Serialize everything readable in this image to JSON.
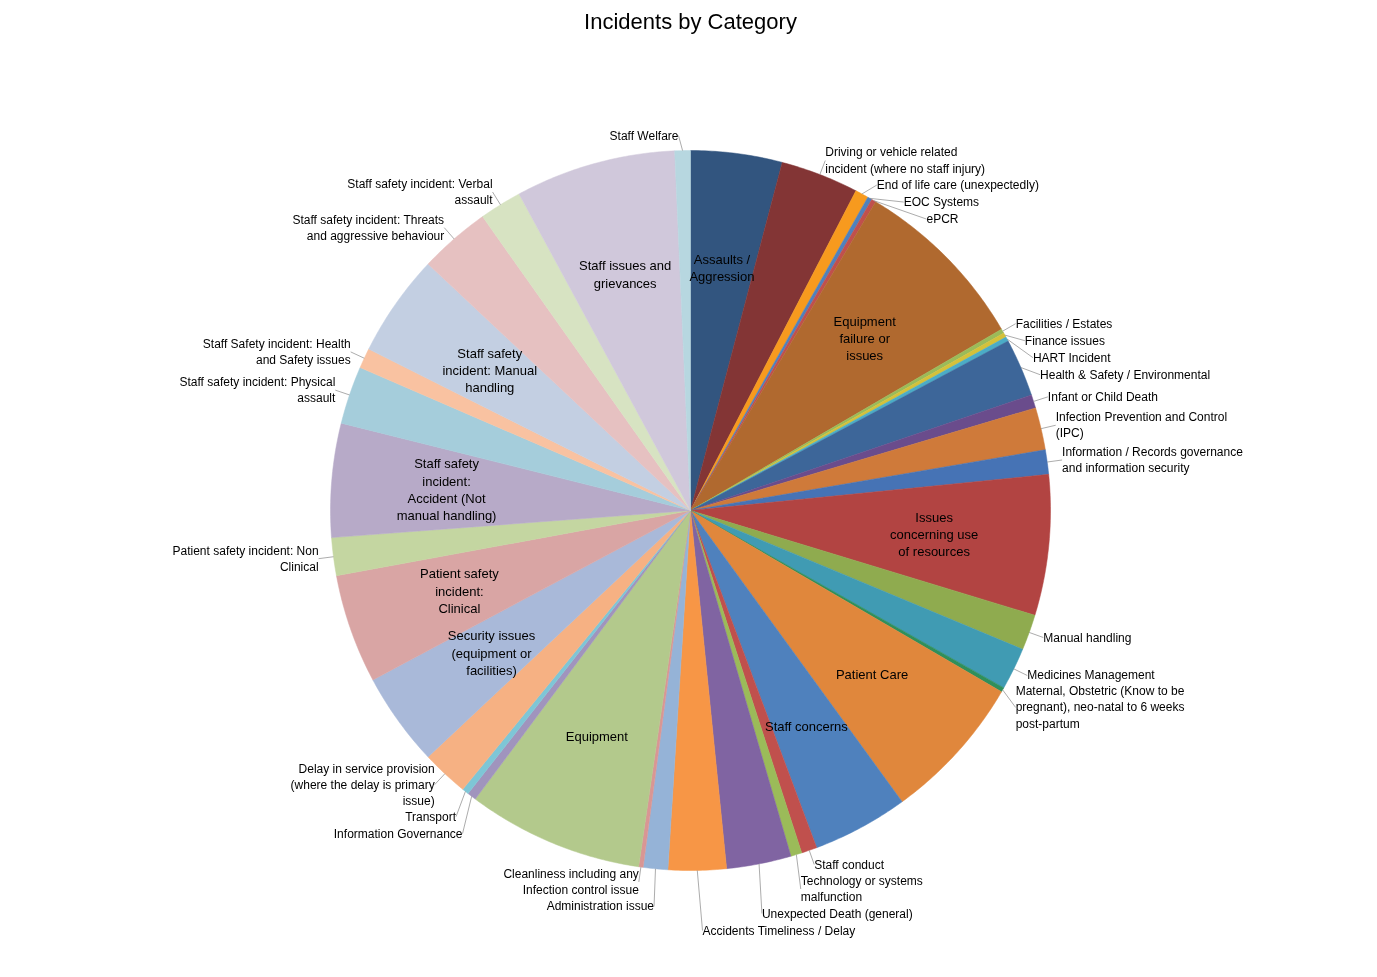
{
  "chart_data": {
    "type": "pie",
    "title": "Incidents by Category",
    "legend": false,
    "categories": [
      "Assaults / Aggression",
      "Driving or vehicle related incident (where no staff injury)",
      "End of life care (unexpectedly)",
      "EOC Systems",
      "ePCR",
      "Equipment failure or issues",
      "Facilities / Estates",
      "Finance issues",
      "HART Incident",
      "Health & Safety / Environmental",
      "Infant or Child Death",
      "Infection Prevention and Control (IPC)",
      "Information / Records governance and information security",
      "Issues concerning use of resources",
      "Manual handling",
      "Medicines Management",
      "Maternal, Obstetric (Know to be pregnant), neo-natal to 6 weeks post-partum",
      "Patient Care",
      "Staff concerns",
      "Staff conduct",
      "Technology or systems malfunction",
      "Unexpected Death (general)",
      "Accidents Timeliness / Delay",
      "Administration issue",
      "Cleanliness including any Infection control issue",
      "Equipment",
      "Information Governance",
      "Transport",
      "Delay in service provision (where the delay is primary issue)",
      "Security issues (equipment or facilities)",
      "Patient safety incident: Clinical",
      "Patient safety incident: Non Clinical",
      "Staff safety incident: Accident (Not manual handling)",
      "Staff safety incident: Physical assault",
      "Staff Safety incident: Health and Safety issues",
      "Staff safety incident: Manual handling",
      "Staff safety incident: Threats and aggressive behaviour",
      "Staff safety incident: Verbal assault",
      "Staff issues and grievances",
      "Staff Welfare"
    ],
    "values": [
      4.1,
      3.5,
      0.6,
      0.2,
      0.2,
      8.0,
      0.2,
      0.2,
      0.2,
      2.6,
      0.6,
      1.9,
      1.1,
      6.3,
      1.6,
      1.9,
      0.2,
      6.6,
      4.3,
      0.7,
      0.5,
      2.9,
      2.6,
      1.1,
      0.2,
      7.9,
      0.4,
      0.3,
      2.1,
      4.2,
      4.9,
      1.7,
      5.1,
      2.6,
      0.9,
      4.6,
      3.2,
      1.9,
      7.2,
      0.7
    ],
    "colors": [
      "#32557f",
      "#833535",
      "#f79a1e",
      "#4f81bd",
      "#c0504d",
      "#b0692f",
      "#9bbb59",
      "#d4c13a",
      "#4bacc6",
      "#3d6699",
      "#6a4c8c",
      "#cf7a3a",
      "#4673b5",
      "#b24442",
      "#8fab4f",
      "#409bb3",
      "#2f8f5b",
      "#e0873c",
      "#4f81bd",
      "#c0504d",
      "#9bbb59",
      "#8064a2",
      "#f79646",
      "#95b3d7",
      "#d99694",
      "#b3c98c",
      "#a094bd",
      "#7ec6d6",
      "#f6b183",
      "#a9b9d9",
      "#d9a5a4",
      "#c4d6a1",
      "#b7aac8",
      "#a5cddb",
      "#f9c2a1",
      "#c3cfe2",
      "#e6c1c1",
      "#d7e3c2",
      "#d0c8db",
      "#b7d7e0"
    ]
  }
}
